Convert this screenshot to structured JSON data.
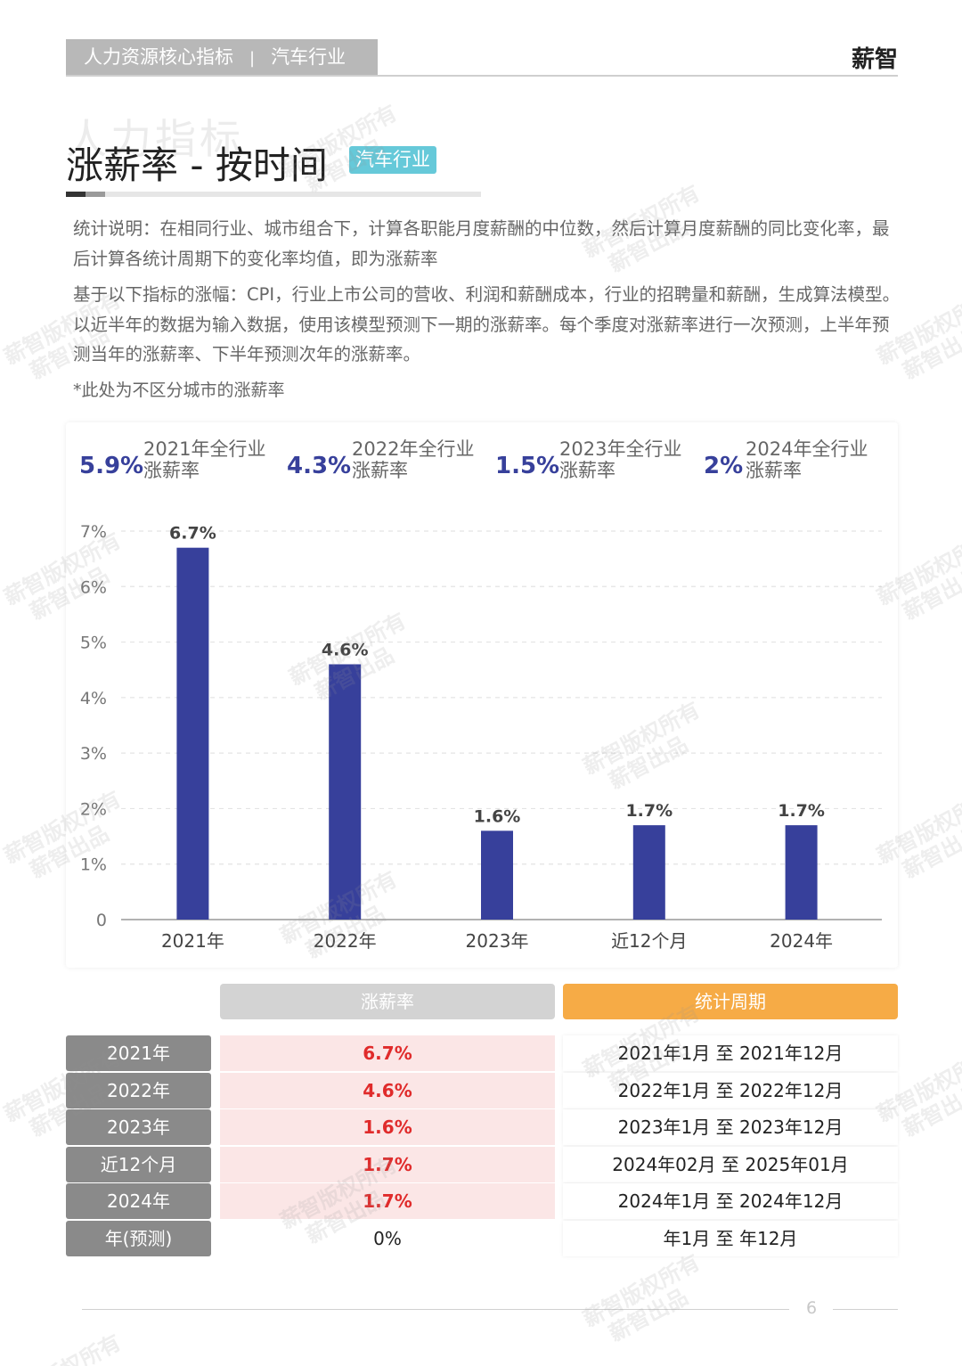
{
  "header": {
    "section": "人力资源核心指标",
    "industry": "汽车行业",
    "brand": "薪智"
  },
  "title": {
    "main": "涨薪率 - 按时间",
    "badge": "汽车行业",
    "ghost": "人力指标"
  },
  "notes": {
    "p1": "统计说明：在相同行业、城市组合下，计算各职能月度薪酬的中位数，然后计算月度薪酬的同比变化率，最后计算各统计周期下的变化率均值，即为涨薪率",
    "p2": "基于以下指标的涨幅：CPI，行业上市公司的营收、利润和薪酬成本，行业的招聘量和薪酬，生成算法模型。以近半年的数据为输入数据，使用该模型预测下一期的涨薪率。每个季度对涨薪率进行一次预测，上半年预测当年的涨薪率、下半年预测次年的涨薪率。",
    "p3": "*此处为不区分城市的涨薪率"
  },
  "stats": [
    {
      "value": "5.9%",
      "label1": "2021年全行业",
      "label2": "涨薪率"
    },
    {
      "value": "4.3%",
      "label1": "2022年全行业",
      "label2": "涨薪率"
    },
    {
      "value": "1.5%",
      "label1": "2023年全行业",
      "label2": "涨薪率"
    },
    {
      "value": "2%",
      "label1": "2024年全行业",
      "label2": "涨薪率"
    }
  ],
  "chart_data": {
    "type": "bar",
    "categories": [
      "2021年",
      "2022年",
      "2023年",
      "近12个月",
      "2024年"
    ],
    "values": [
      6.7,
      4.6,
      1.6,
      1.7,
      1.7
    ],
    "value_labels": [
      "6.7%",
      "4.6%",
      "1.6%",
      "1.7%",
      "1.7%"
    ],
    "yticks": [
      "0",
      "1%",
      "2%",
      "3%",
      "4%",
      "5%",
      "6%",
      "7%"
    ],
    "ylim": [
      0,
      7
    ],
    "grid": true,
    "bar_color": "#37409b"
  },
  "table": {
    "header_rate": "涨薪率",
    "header_period": "统计周期",
    "rows": [
      {
        "year": "2021年",
        "rate": "6.7%",
        "period": "2021年1月 至 2021年12月"
      },
      {
        "year": "2022年",
        "rate": "4.6%",
        "period": "2022年1月 至 2022年12月"
      },
      {
        "year": "2023年",
        "rate": "1.6%",
        "period": "2023年1月 至 2023年12月"
      },
      {
        "year": "近12个月",
        "rate": "1.7%",
        "period": "2024年02月 至 2025年01月"
      },
      {
        "year": "2024年",
        "rate": "1.7%",
        "period": "2024年1月 至 2024年12月"
      },
      {
        "year": "年(预测)",
        "rate": "0%",
        "period": "年1月 至 年12月"
      }
    ]
  },
  "footer": {
    "page": "6"
  },
  "watermark": {
    "line1": "薪智版权所有",
    "line2": "薪智出品"
  }
}
